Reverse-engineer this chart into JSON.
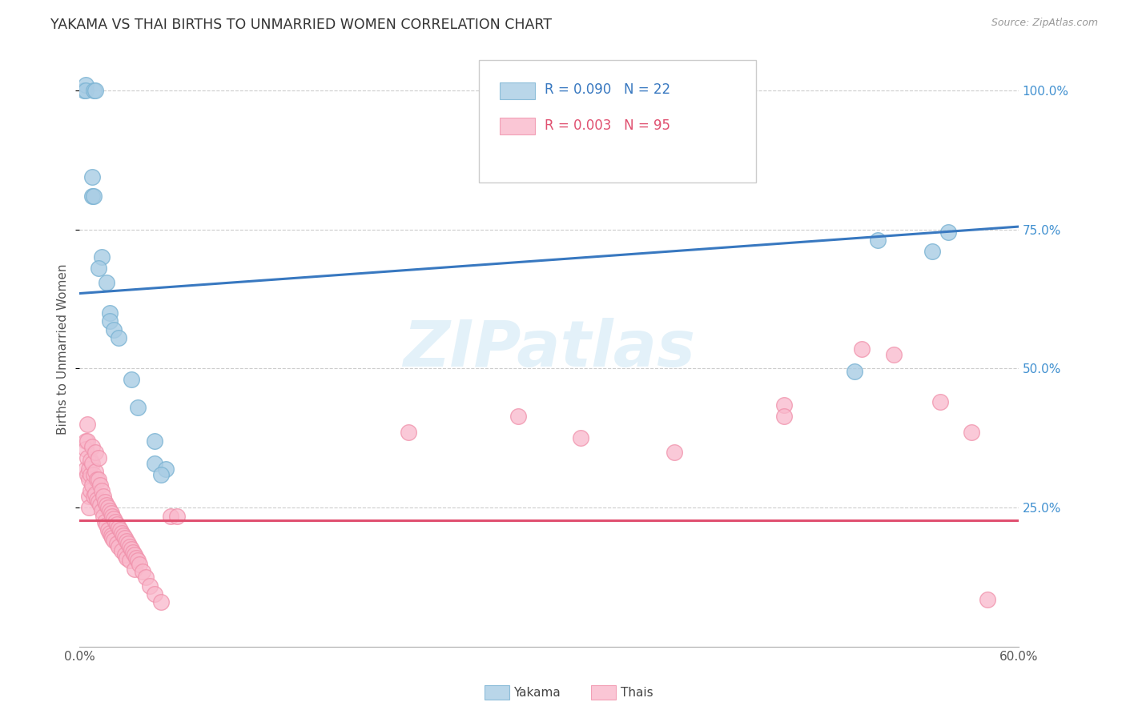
{
  "title": "YAKAMA VS THAI BIRTHS TO UNMARRIED WOMEN CORRELATION CHART",
  "source": "Source: ZipAtlas.com",
  "ylabel": "Births to Unmarried Women",
  "legend_blue_label": "Yakama",
  "legend_pink_label": "Thais",
  "watermark": "ZIPatlas",
  "blue_fill": "#a8cce4",
  "blue_edge": "#7ab3d3",
  "pink_fill": "#f9b8cb",
  "pink_edge": "#f090aa",
  "blue_line_color": "#3878c0",
  "pink_line_color": "#e05070",
  "right_tick_color": "#4090d0",
  "xlim": [
    0.0,
    0.6
  ],
  "ylim": [
    0.0,
    1.07
  ],
  "blue_trendline_x": [
    0.0,
    0.6
  ],
  "blue_trendline_y": [
    0.635,
    0.755
  ],
  "pink_trendline_x": [
    0.0,
    0.6
  ],
  "pink_trendline_y": [
    0.227,
    0.227
  ],
  "yticks": [
    0.25,
    0.5,
    0.75,
    1.0
  ],
  "yakama_x": [
    0.003,
    0.004,
    0.004,
    0.009,
    0.01,
    0.008,
    0.008,
    0.009,
    0.014,
    0.012,
    0.017,
    0.019,
    0.019,
    0.022,
    0.025,
    0.033,
    0.037,
    0.048,
    0.048,
    0.055,
    0.052,
    0.495,
    0.51,
    0.545,
    0.555
  ],
  "yakama_y": [
    1.0,
    1.01,
    1.0,
    1.0,
    1.0,
    0.845,
    0.81,
    0.81,
    0.7,
    0.68,
    0.655,
    0.6,
    0.585,
    0.57,
    0.555,
    0.48,
    0.43,
    0.37,
    0.33,
    0.32,
    0.31,
    0.495,
    0.73,
    0.71,
    0.745
  ],
  "thai_x": [
    0.004,
    0.004,
    0.004,
    0.005,
    0.005,
    0.005,
    0.005,
    0.006,
    0.006,
    0.006,
    0.006,
    0.007,
    0.007,
    0.007,
    0.008,
    0.008,
    0.008,
    0.009,
    0.009,
    0.01,
    0.01,
    0.01,
    0.011,
    0.011,
    0.012,
    0.012,
    0.012,
    0.013,
    0.013,
    0.014,
    0.014,
    0.015,
    0.015,
    0.016,
    0.016,
    0.017,
    0.017,
    0.018,
    0.018,
    0.019,
    0.019,
    0.02,
    0.02,
    0.021,
    0.021,
    0.022,
    0.022,
    0.023,
    0.024,
    0.024,
    0.025,
    0.025,
    0.026,
    0.027,
    0.027,
    0.028,
    0.029,
    0.029,
    0.03,
    0.03,
    0.031,
    0.032,
    0.032,
    0.033,
    0.034,
    0.035,
    0.035,
    0.036,
    0.037,
    0.038,
    0.04,
    0.042,
    0.045,
    0.048,
    0.052,
    0.058,
    0.062,
    0.21,
    0.28,
    0.32,
    0.38,
    0.45,
    0.45,
    0.5,
    0.52,
    0.55,
    0.57,
    0.58
  ],
  "thai_y": [
    0.37,
    0.355,
    0.32,
    0.4,
    0.37,
    0.34,
    0.31,
    0.32,
    0.3,
    0.27,
    0.25,
    0.335,
    0.31,
    0.28,
    0.36,
    0.33,
    0.29,
    0.31,
    0.27,
    0.35,
    0.315,
    0.275,
    0.3,
    0.265,
    0.34,
    0.3,
    0.26,
    0.29,
    0.255,
    0.28,
    0.245,
    0.27,
    0.235,
    0.26,
    0.225,
    0.255,
    0.218,
    0.25,
    0.21,
    0.245,
    0.205,
    0.24,
    0.2,
    0.235,
    0.195,
    0.23,
    0.192,
    0.225,
    0.22,
    0.185,
    0.215,
    0.18,
    0.21,
    0.205,
    0.172,
    0.2,
    0.195,
    0.165,
    0.19,
    0.16,
    0.185,
    0.18,
    0.155,
    0.175,
    0.17,
    0.165,
    0.14,
    0.16,
    0.155,
    0.148,
    0.135,
    0.125,
    0.11,
    0.095,
    0.08,
    0.235,
    0.235,
    0.385,
    0.415,
    0.375,
    0.35,
    0.435,
    0.415,
    0.535,
    0.525,
    0.44,
    0.385,
    0.085
  ]
}
